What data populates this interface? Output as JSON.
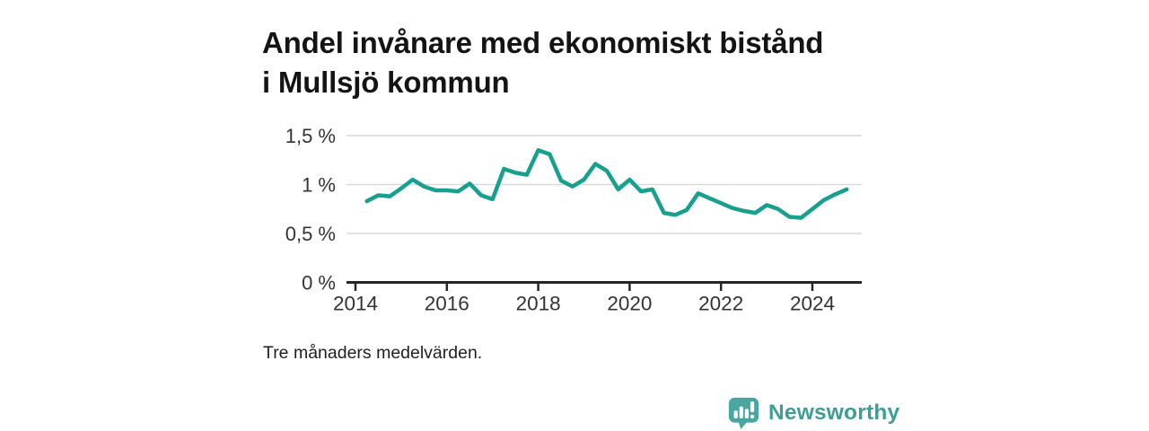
{
  "colors": {
    "line": "#17a08f",
    "grid": "#d9d9d9",
    "axis": "#262626",
    "tick_text": "#333333",
    "title_text": "#141414",
    "logo_mark": "#4aa6a0",
    "logo_text": "#3e9d96"
  },
  "branding": {
    "logo_text": "Newsworthy",
    "logo_icon": "bar-chart-speech-bubble-icon"
  },
  "chart_data": {
    "type": "line",
    "title": "Andel invånare med ekonomiskt bistånd i Mullsjö kommun",
    "note": "Tre månaders medelvärden.",
    "unit": "%",
    "grid": "horizontal",
    "legend": "none",
    "ylim": [
      0,
      1.5
    ],
    "xlim": [
      2013.8,
      2025.1
    ],
    "x_start": 2014.25,
    "x_step": 0.25,
    "x_ticks": [
      2014,
      2016,
      2018,
      2020,
      2022,
      2024
    ],
    "y_ticks": [
      {
        "value": 0,
        "label": "0 %"
      },
      {
        "value": 0.5,
        "label": "0,5 %"
      },
      {
        "value": 1,
        "label": "1 %"
      },
      {
        "value": 1.5,
        "label": "1,5 %"
      }
    ],
    "series": [
      {
        "name": "Andel invånare med ekonomiskt bistånd",
        "values": [
          0.83,
          0.89,
          0.88,
          0.96,
          1.05,
          0.98,
          0.94,
          0.94,
          0.93,
          1.01,
          0.89,
          0.85,
          1.16,
          1.12,
          1.1,
          1.35,
          1.31,
          1.04,
          0.98,
          1.05,
          1.21,
          1.14,
          0.95,
          1.05,
          0.93,
          0.95,
          0.71,
          0.69,
          0.74,
          0.91,
          0.86,
          0.81,
          0.76,
          0.73,
          0.71,
          0.79,
          0.75,
          0.67,
          0.66,
          0.75,
          0.84,
          0.9,
          0.95
        ]
      }
    ]
  }
}
